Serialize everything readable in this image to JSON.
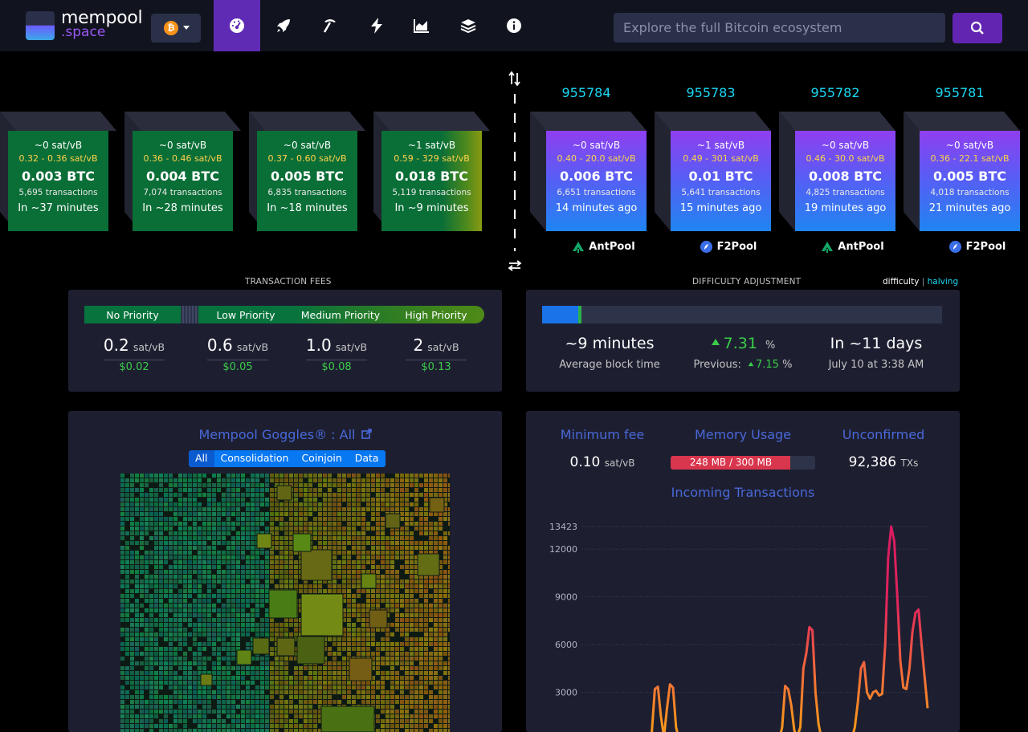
{
  "header": {
    "logo_line1": "mempool",
    "logo_line2": ".space",
    "network_symbol": "₿",
    "search_placeholder": "Explore the full Bitcoin ecosystem",
    "nav_icons": [
      "dashboard-icon",
      "rocket-icon",
      "pickaxe-icon",
      "lightning-icon",
      "chart-icon",
      "layers-icon",
      "info-icon"
    ],
    "active_nav": "dashboard-icon",
    "accent_color": "#6225b2"
  },
  "pending_blocks": [
    {
      "fee": "~0 sat/vB",
      "range": "0.32 - 0.36 sat/vB",
      "btc": "0.003 BTC",
      "txs": "5,695 transactions",
      "eta": "In ~37 minutes"
    },
    {
      "fee": "~0 sat/vB",
      "range": "0.36 - 0.46 sat/vB",
      "btc": "0.004 BTC",
      "txs": "7,074 transactions",
      "eta": "In ~28 minutes"
    },
    {
      "fee": "~0 sat/vB",
      "range": "0.37 - 0.60 sat/vB",
      "btc": "0.005 BTC",
      "txs": "6,835 transactions",
      "eta": "In ~18 minutes"
    },
    {
      "fee": "~1 sat/vB",
      "range": "0.59 - 329 sat/vB",
      "btc": "0.018 BTC",
      "txs": "5,119 transactions",
      "eta": "In ~9 minutes"
    }
  ],
  "mined_blocks": [
    {
      "height": "955784",
      "fee": "~0 sat/vB",
      "range": "0.40 - 20.0 sat/vB",
      "btc": "0.006 BTC",
      "txs": "6,651 transactions",
      "age": "14 minutes ago",
      "pool": "AntPool",
      "pool_icon": "antpool-icon"
    },
    {
      "height": "955783",
      "fee": "~1 sat/vB",
      "range": "0.49 - 301 sat/vB",
      "btc": "0.01 BTC",
      "txs": "5,641 transactions",
      "age": "15 minutes ago",
      "pool": "F2Pool",
      "pool_icon": "f2pool-icon"
    },
    {
      "height": "955782",
      "fee": "~0 sat/vB",
      "range": "0.46 - 30.0 sat/vB",
      "btc": "0.008 BTC",
      "txs": "4,825 transactions",
      "age": "19 minutes ago",
      "pool": "AntPool",
      "pool_icon": "antpool-icon"
    },
    {
      "height": "955781",
      "fee": "~0 sat/vB",
      "range": "0.36 - 22.1 sat/vB",
      "btc": "0.005 BTC",
      "txs": "4,018 transactions",
      "age": "21 minutes ago",
      "pool": "F2Pool",
      "pool_icon": "f2pool-icon"
    }
  ],
  "fees": {
    "title": "TRANSACTION FEES",
    "labels": [
      "No Priority",
      "Low Priority",
      "Medium Priority",
      "High Priority"
    ],
    "values": [
      "0.2",
      "0.6",
      "1.0",
      "2"
    ],
    "unit": "sat/vB",
    "usd": [
      "$0.02",
      "$0.05",
      "$0.08",
      "$0.13"
    ]
  },
  "difficulty": {
    "title": "DIFFICULTY ADJUSTMENT",
    "toggle_difficulty": "difficulty",
    "toggle_separator": "|",
    "toggle_halving": "halving",
    "progress_fraction": 0.09,
    "avg_time": "~9 minutes",
    "avg_time_label": "Average block time",
    "change": "7.31",
    "change_unit": "%",
    "previous_label": "Previous:",
    "previous_value": "7.15",
    "previous_unit": "%",
    "eta": "In ~11 days",
    "eta_date": "July 10 at 3:38 AM"
  },
  "goggles": {
    "title": "Mempool Goggles® : All",
    "tabs": [
      "All",
      "Consolidation",
      "Coinjoin",
      "Data"
    ],
    "active_tab": "All"
  },
  "stats": {
    "min_fee_label": "Minimum fee",
    "min_fee_value": "0.10",
    "min_fee_unit": "sat/vB",
    "memory_label": "Memory Usage",
    "memory_text": "248 MB / 300 MB",
    "memory_fraction": 0.827,
    "unconfirmed_label": "Unconfirmed",
    "unconfirmed_value": "92,386",
    "unconfirmed_unit": "TXs",
    "chart_title": "Incoming Transactions"
  },
  "chart_data": {
    "type": "line",
    "title": "Incoming Transactions",
    "y_ticks": [
      "13423",
      "12000",
      "9000",
      "6000",
      "3000"
    ],
    "y_tick_values": [
      13423,
      12000,
      9000,
      6000,
      3000
    ],
    "ylim": [
      0,
      13423
    ],
    "grid": true,
    "series": [
      {
        "values": [
          0,
          0,
          0,
          0,
          0,
          0,
          0,
          0,
          0,
          0,
          0,
          0,
          0,
          0,
          0,
          500,
          3200,
          3350,
          1500,
          200,
          2000,
          3500,
          3300,
          800,
          0,
          0,
          0,
          0,
          0,
          0,
          0,
          0,
          0,
          0,
          0,
          0,
          0,
          0,
          0,
          0,
          0,
          0,
          0,
          0,
          0,
          0,
          0,
          0,
          0,
          0,
          0,
          0,
          0,
          0,
          0,
          0,
          0,
          0,
          800,
          3400,
          3200,
          2200,
          600,
          200,
          800,
          4500,
          5500,
          7100,
          6900,
          3000,
          1000,
          100,
          0,
          0,
          0,
          0,
          0,
          0,
          0,
          0,
          0,
          100,
          800,
          2400,
          4500,
          4900,
          3000,
          2600,
          3000,
          3100,
          2800,
          2900,
          6000,
          11500,
          13423,
          12500,
          9000,
          5000,
          3300,
          3200,
          4500,
          6800,
          8000,
          8200,
          6000,
          4000,
          2000
        ]
      }
    ]
  }
}
